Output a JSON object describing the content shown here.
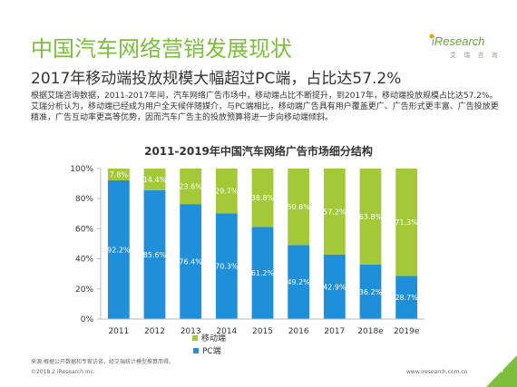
{
  "header": {
    "title": "中国汽车网络营销发展现状",
    "subtitle": "2017年移动端投放规模大幅超过PC端，占比达57.2%",
    "description": "根据艾瑞咨询数据，2011-2017年间，汽车网络广告市场中，移动端占比不断提升，到2017年，移动端投放规模占比达57.2%。艾瑞分析认为，移动端已经成为用户全天候伴随媒介，与PC端相比，移动端广告具有用户覆盖更广、广告形式更丰富、广告投放更精准，广告互动率更高等优势，因而汽车广告主的投放预算将进一步向移动端倾斜。"
  },
  "logo": {
    "name": "iResearch",
    "subtitle": "艾 瑞 咨 询"
  },
  "colors": {
    "mobile": "#a3c939",
    "pc": "#1e8fd8",
    "title": "#7bbf3a",
    "page_badge": "#7bbf3a"
  },
  "chart_data": {
    "type": "bar",
    "stacked": true,
    "title": "2011-2019年中国汽车网络广告市场细分结构",
    "categories": [
      "2011",
      "2012",
      "2013",
      "2014",
      "2015",
      "2016",
      "2017",
      "2018e",
      "2019e"
    ],
    "series": [
      {
        "name": "PC端",
        "values": [
          92.2,
          85.6,
          76.4,
          70.3,
          61.2,
          49.2,
          42.9,
          36.2,
          28.7
        ],
        "labels": [
          "92.2%",
          "85.6%",
          "76.4%",
          "70.3%",
          "61.2%",
          "49.2%",
          "42.9%",
          "36.2%",
          "28.7%"
        ]
      },
      {
        "name": "移动端",
        "values": [
          7.8,
          14.4,
          23.6,
          29.7,
          38.8,
          50.8,
          57.2,
          63.8,
          71.3
        ],
        "labels": [
          "7.8%",
          "14.4%",
          "23.6%",
          "29.7%",
          "38.8%",
          "50.8%",
          "57.2%",
          "63.8%",
          "71.3%"
        ]
      }
    ],
    "ylim": [
      0,
      100
    ],
    "yticks": [
      "0%",
      "20%",
      "40%",
      "60%",
      "80%",
      "100%"
    ],
    "legend_position": "bottom",
    "grid": false
  },
  "footer": {
    "source": "来源:根据公开数据和专家访谈，经艾瑞统计模型推算而得。",
    "copyright": "©2018.2 iResearch Inc.",
    "site": "www.iresearch.com.cn",
    "page": "7"
  }
}
